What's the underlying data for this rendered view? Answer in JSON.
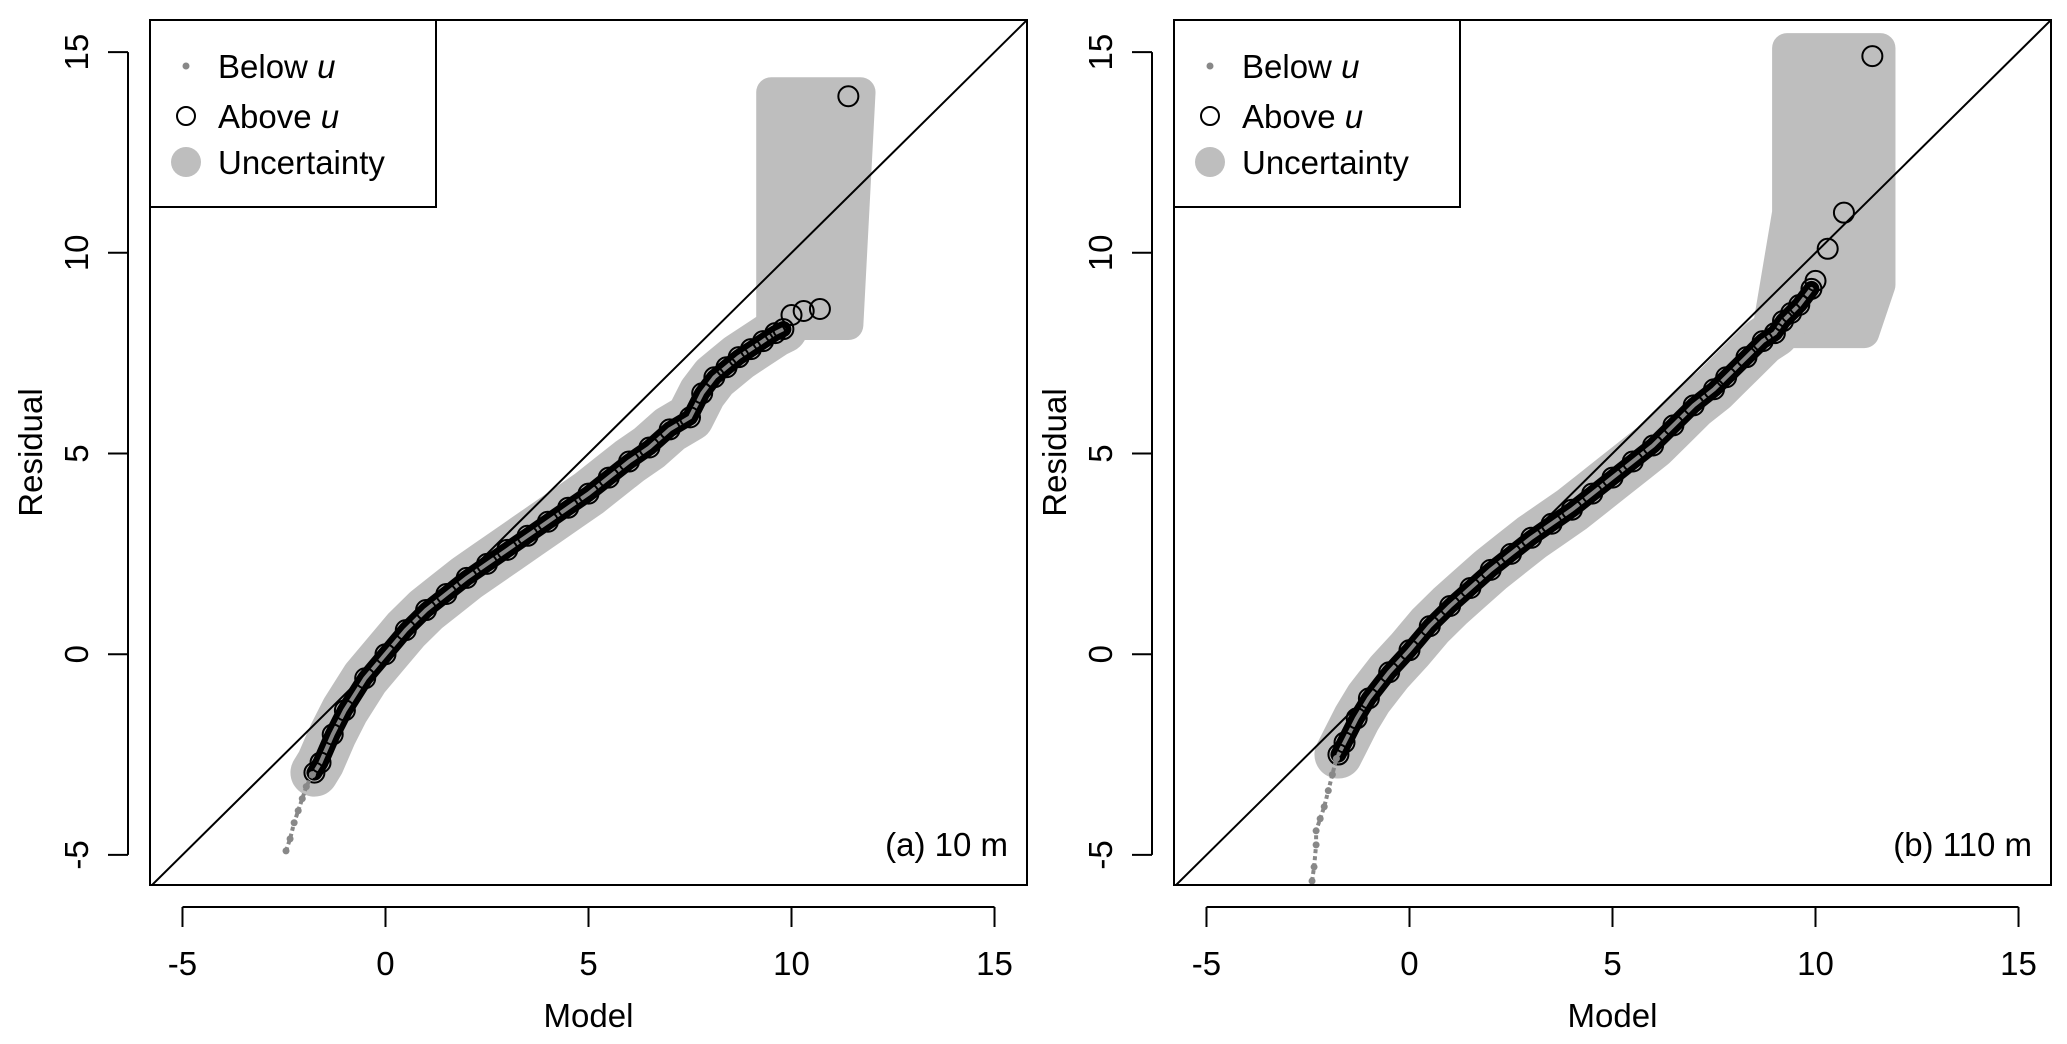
{
  "chart_data": [
    {
      "type": "scatter",
      "panel_label": "(a) 10 m",
      "xlabel": "Model",
      "ylabel": "Residual",
      "xlim": [
        -5.8,
        15.8
      ],
      "ylim": [
        -5.75,
        15.8
      ],
      "xticks": [
        "-5",
        "0",
        "5",
        "10",
        "15"
      ],
      "yticks": [
        "-5",
        "0",
        "5",
        "10",
        "15"
      ],
      "tick_values": [
        -5,
        0,
        5,
        10,
        15
      ],
      "reference_line": "y = x",
      "legend": {
        "position": "top-left",
        "entries": [
          "Below ",
          "Above ",
          "Uncertainty"
        ],
        "italic_suffix": "u"
      },
      "below_u": [
        [
          -2.45,
          -4.9
        ],
        [
          -2.35,
          -4.6
        ],
        [
          -2.25,
          -4.2
        ],
        [
          -2.15,
          -3.9
        ],
        [
          -2.05,
          -3.6
        ],
        [
          -1.95,
          -3.3
        ],
        [
          -1.8,
          -3.0
        ]
      ],
      "above_u": [
        [
          -1.75,
          -2.95
        ],
        [
          -1.6,
          -2.7
        ],
        [
          -1.3,
          -2.0
        ],
        [
          -1,
          -1.4
        ],
        [
          -0.5,
          -0.6
        ],
        [
          0,
          0
        ],
        [
          0.5,
          0.6
        ],
        [
          1,
          1.1
        ],
        [
          1.5,
          1.5
        ],
        [
          2,
          1.9
        ],
        [
          2.5,
          2.25
        ],
        [
          3,
          2.6
        ],
        [
          3.5,
          2.95
        ],
        [
          4,
          3.3
        ],
        [
          4.5,
          3.65
        ],
        [
          5,
          4.0
        ],
        [
          5.5,
          4.4
        ],
        [
          6,
          4.8
        ],
        [
          6.5,
          5.15
        ],
        [
          7,
          5.6
        ],
        [
          7.5,
          5.9
        ],
        [
          7.8,
          6.5
        ],
        [
          8.1,
          6.9
        ],
        [
          8.4,
          7.15
        ],
        [
          8.7,
          7.4
        ],
        [
          9,
          7.6
        ],
        [
          9.3,
          7.8
        ],
        [
          9.6,
          8.0
        ],
        [
          9.8,
          8.1
        ],
        [
          10,
          8.45
        ],
        [
          10.3,
          8.55
        ],
        [
          10.7,
          8.6
        ],
        [
          11.4,
          13.9
        ]
      ],
      "uncertainty_box": [
        [
          9.5,
          8.2
        ],
        [
          9.5,
          14.0
        ],
        [
          11.7,
          14.0
        ],
        [
          11.4,
          8.2
        ]
      ],
      "colors": {
        "below": "#888888",
        "above": "#000000",
        "band": "#bebebe"
      }
    },
    {
      "type": "scatter",
      "panel_label": "(b) 110 m",
      "xlabel": "Model",
      "ylabel": "Residual",
      "xlim": [
        -5.8,
        15.8
      ],
      "ylim": [
        -5.75,
        15.8
      ],
      "xticks": [
        "-5",
        "0",
        "5",
        "10",
        "15"
      ],
      "yticks": [
        "-5",
        "0",
        "5",
        "10",
        "15"
      ],
      "tick_values": [
        -5,
        0,
        5,
        10,
        15
      ],
      "reference_line": "y = x",
      "legend": {
        "position": "top-left",
        "entries": [
          "Below ",
          "Above ",
          "Uncertainty"
        ],
        "italic_suffix": "u"
      },
      "below_u": [
        [
          -2.4,
          -5.65
        ],
        [
          -2.35,
          -5.3
        ],
        [
          -2.3,
          -4.75
        ],
        [
          -2.3,
          -4.4
        ],
        [
          -2.2,
          -4.1
        ],
        [
          -2.1,
          -3.8
        ],
        [
          -2.0,
          -3.4
        ],
        [
          -1.9,
          -3.0
        ],
        [
          -1.8,
          -2.6
        ]
      ],
      "above_u": [
        [
          -1.75,
          -2.5
        ],
        [
          -1.6,
          -2.2
        ],
        [
          -1.3,
          -1.6
        ],
        [
          -1,
          -1.1
        ],
        [
          -0.5,
          -0.45
        ],
        [
          0,
          0.1
        ],
        [
          0.5,
          0.7
        ],
        [
          1,
          1.2
        ],
        [
          1.5,
          1.65
        ],
        [
          2,
          2.1
        ],
        [
          2.5,
          2.5
        ],
        [
          3,
          2.9
        ],
        [
          3.5,
          3.25
        ],
        [
          4,
          3.6
        ],
        [
          4.5,
          4.0
        ],
        [
          5,
          4.4
        ],
        [
          5.5,
          4.8
        ],
        [
          6,
          5.2
        ],
        [
          6.5,
          5.7
        ],
        [
          7,
          6.2
        ],
        [
          7.5,
          6.6
        ],
        [
          7.8,
          6.9
        ],
        [
          8.3,
          7.4
        ],
        [
          8.7,
          7.8
        ],
        [
          9,
          8.0
        ],
        [
          9.2,
          8.3
        ],
        [
          9.4,
          8.5
        ],
        [
          9.6,
          8.7
        ],
        [
          9.9,
          9.1
        ],
        [
          10,
          9.3
        ],
        [
          10.3,
          10.1
        ],
        [
          10.7,
          11.0
        ],
        [
          11.4,
          14.9
        ]
      ],
      "uncertainty_box": [
        [
          8.8,
          8.0
        ],
        [
          9.3,
          11.0
        ],
        [
          9.3,
          15.1
        ],
        [
          11.6,
          15.1
        ],
        [
          11.6,
          9.2
        ],
        [
          11.2,
          8.0
        ]
      ],
      "colors": {
        "below": "#888888",
        "above": "#000000",
        "band": "#bebebe"
      }
    }
  ]
}
